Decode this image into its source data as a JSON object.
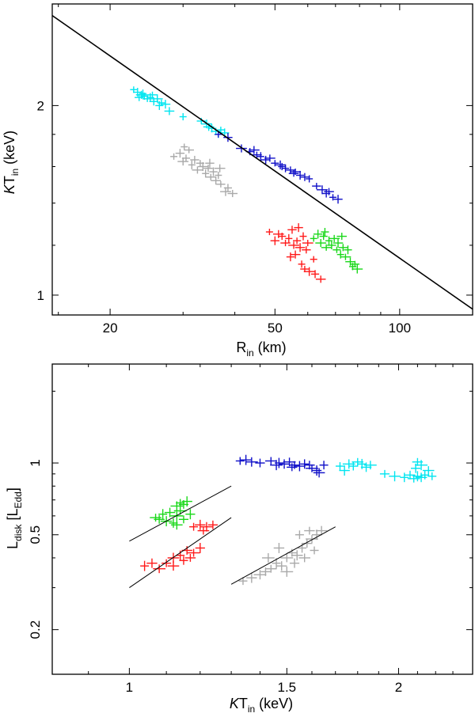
{
  "chart_data": [
    {
      "id": "top",
      "type": "scatter",
      "xscale": "log",
      "yscale": "log",
      "xlim": [
        14.5,
        150
      ],
      "ylim": [
        0.93,
        2.9
      ],
      "xlabel": {
        "main": "R",
        "sub": "in",
        "unit": " (km)"
      },
      "ylabel": {
        "italic": "K",
        "main": "T",
        "sub": "in",
        "unit": " (keV)"
      },
      "xticks": [
        {
          "value": 20,
          "label": "20"
        },
        {
          "value": 50,
          "label": "50"
        },
        {
          "value": 100,
          "label": "100"
        }
      ],
      "xminor": [
        15,
        30,
        40,
        60,
        70,
        80,
        90
      ],
      "yticks": [
        {
          "value": 1,
          "label": "1"
        },
        {
          "value": 2,
          "label": "2"
        }
      ],
      "yminor": [
        1.2,
        1.4,
        1.6,
        1.8
      ],
      "fit_lines": [
        {
          "x": [
            14.5,
            150
          ],
          "y": [
            2.78,
            0.95
          ]
        }
      ],
      "series": [
        {
          "name": "cyan",
          "color": "#00e5f0",
          "points": [
            [
              22.8,
              2.12
            ],
            [
              23.3,
              2.1
            ],
            [
              23.8,
              2.08
            ],
            [
              24.2,
              2.07
            ],
            [
              24.6,
              2.05
            ],
            [
              25.0,
              2.06
            ],
            [
              25.5,
              2.03
            ],
            [
              26.0,
              2.05
            ],
            [
              26.6,
              2.02
            ],
            [
              27.2,
              2.01
            ],
            [
              24.0,
              2.09
            ],
            [
              23.5,
              2.06
            ],
            [
              25.3,
              2.08
            ],
            [
              26.3,
              2.0
            ],
            [
              27.8,
              1.96
            ],
            [
              30.0,
              1.92
            ],
            [
              33.2,
              1.89
            ],
            [
              34.2,
              1.87
            ],
            [
              35.2,
              1.84
            ],
            [
              36.0,
              1.82
            ],
            [
              37.0,
              1.83
            ],
            [
              37.8,
              1.81
            ],
            [
              34.6,
              1.85
            ],
            [
              36.5,
              1.8
            ]
          ]
        },
        {
          "name": "blue",
          "color": "#1010c8",
          "points": [
            [
              36.5,
              1.8
            ],
            [
              38.5,
              1.78
            ],
            [
              41.5,
              1.71
            ],
            [
              43.5,
              1.69
            ],
            [
              45.2,
              1.67
            ],
            [
              46.2,
              1.66
            ],
            [
              47.5,
              1.64
            ],
            [
              48.6,
              1.65
            ],
            [
              50.0,
              1.62
            ],
            [
              51.5,
              1.61
            ],
            [
              53.0,
              1.59
            ],
            [
              54.5,
              1.58
            ],
            [
              56.0,
              1.57
            ],
            [
              57.5,
              1.55
            ],
            [
              59.0,
              1.54
            ],
            [
              60.5,
              1.53
            ],
            [
              63.0,
              1.49
            ],
            [
              65.0,
              1.47
            ],
            [
              66.5,
              1.45
            ],
            [
              67.5,
              1.46
            ],
            [
              69.0,
              1.43
            ],
            [
              71.0,
              1.42
            ],
            [
              44.5,
              1.7
            ],
            [
              52.0,
              1.6
            ],
            [
              55.5,
              1.56
            ]
          ]
        },
        {
          "name": "gray",
          "color": "#a9a9a9",
          "points": [
            [
              28.5,
              1.66
            ],
            [
              29.5,
              1.68
            ],
            [
              30.0,
              1.63
            ],
            [
              30.5,
              1.65
            ],
            [
              31.0,
              1.7
            ],
            [
              31.5,
              1.61
            ],
            [
              32.0,
              1.64
            ],
            [
              32.5,
              1.58
            ],
            [
              33.0,
              1.62
            ],
            [
              33.5,
              1.6
            ],
            [
              34.0,
              1.56
            ],
            [
              34.5,
              1.59
            ],
            [
              35.0,
              1.54
            ],
            [
              35.5,
              1.57
            ],
            [
              36.0,
              1.52
            ],
            [
              36.5,
              1.55
            ],
            [
              37.0,
              1.5
            ],
            [
              38.0,
              1.46
            ],
            [
              38.5,
              1.48
            ],
            [
              39.5,
              1.45
            ],
            [
              30.2,
              1.72
            ],
            [
              34.8,
              1.62
            ],
            [
              36.8,
              1.59
            ]
          ]
        },
        {
          "name": "red",
          "color": "#ff1a1a",
          "points": [
            [
              48.5,
              1.26
            ],
            [
              50.0,
              1.22
            ],
            [
              51.0,
              1.25
            ],
            [
              52.0,
              1.24
            ],
            [
              53.0,
              1.21
            ],
            [
              54.0,
              1.23
            ],
            [
              55.0,
              1.27
            ],
            [
              55.5,
              1.2
            ],
            [
              56.5,
              1.22
            ],
            [
              57.5,
              1.19
            ],
            [
              58.5,
              1.24
            ],
            [
              59.5,
              1.18
            ],
            [
              60.0,
              1.21
            ],
            [
              54.5,
              1.15
            ],
            [
              56.0,
              1.16
            ],
            [
              58.0,
              1.12
            ],
            [
              59.0,
              1.1
            ],
            [
              60.5,
              1.09
            ],
            [
              62.5,
              1.08
            ],
            [
              64.5,
              1.06
            ],
            [
              62.0,
              1.14
            ],
            [
              57.0,
              1.28
            ]
          ]
        },
        {
          "name": "green",
          "color": "#1ad81a",
          "points": [
            [
              62.0,
              1.23
            ],
            [
              63.5,
              1.25
            ],
            [
              64.5,
              1.21
            ],
            [
              65.5,
              1.24
            ],
            [
              66.5,
              1.19
            ],
            [
              67.5,
              1.22
            ],
            [
              68.5,
              1.2
            ],
            [
              69.5,
              1.23
            ],
            [
              70.5,
              1.18
            ],
            [
              71.0,
              1.21
            ],
            [
              72.0,
              1.16
            ],
            [
              73.0,
              1.19
            ],
            [
              74.0,
              1.15
            ],
            [
              75.0,
              1.18
            ],
            [
              76.0,
              1.13
            ],
            [
              77.0,
              1.11
            ],
            [
              78.0,
              1.12
            ],
            [
              79.0,
              1.1
            ],
            [
              66.0,
              1.26
            ],
            [
              72.5,
              1.24
            ]
          ]
        }
      ]
    },
    {
      "id": "bottom",
      "type": "scatter",
      "xscale": "log",
      "yscale": "log",
      "xlim": [
        0.82,
        2.42
      ],
      "ylim": [
        0.13,
        2.6
      ],
      "xlabel": {
        "italic": "K",
        "main": "T",
        "sub": "in",
        "unit": " (keV)"
      },
      "ylabel": {
        "main": "L",
        "sub": "disk",
        "unit": " [L",
        "sub2": "Edd",
        "close": "]"
      },
      "xticks": [
        {
          "value": 1,
          "label": "1"
        },
        {
          "value": 1.5,
          "label": "1.5"
        },
        {
          "value": 2,
          "label": "2"
        }
      ],
      "xminor": [
        0.9,
        1.1,
        1.2,
        1.3,
        1.4,
        1.6,
        1.7,
        1.8,
        1.9,
        2.1,
        2.2,
        2.3
      ],
      "yticks": [
        {
          "value": 0.2,
          "label": "0.2"
        },
        {
          "value": 0.5,
          "label": "0.5"
        },
        {
          "value": 1,
          "label": "1"
        }
      ],
      "yminor": [
        0.3,
        0.4,
        0.6,
        0.7,
        0.8,
        0.9,
        2
      ],
      "fit_lines": [
        {
          "x": [
            1.0,
            1.3
          ],
          "y": [
            0.47,
            0.8
          ]
        },
        {
          "x": [
            1.0,
            1.3
          ],
          "y": [
            0.3,
            0.59
          ]
        },
        {
          "x": [
            1.3,
            1.7
          ],
          "y": [
            0.31,
            0.54
          ]
        }
      ],
      "series": [
        {
          "name": "blue",
          "color": "#1010c8",
          "points": [
            [
              1.33,
              1.02
            ],
            [
              1.35,
              1.03
            ],
            [
              1.37,
              1.01
            ],
            [
              1.4,
              1.0
            ],
            [
              1.44,
              1.02
            ],
            [
              1.47,
              1.0
            ],
            [
              1.49,
              0.99
            ],
            [
              1.51,
              1.01
            ],
            [
              1.53,
              0.98
            ],
            [
              1.55,
              0.97
            ],
            [
              1.57,
              0.99
            ],
            [
              1.59,
              0.98
            ],
            [
              1.6,
              0.95
            ],
            [
              1.62,
              0.93
            ],
            [
              1.63,
              0.91
            ],
            [
              1.65,
              0.98
            ],
            [
              1.52,
              0.96
            ],
            [
              1.46,
              0.98
            ]
          ]
        },
        {
          "name": "cyan",
          "color": "#00e5f0",
          "points": [
            [
              1.72,
              0.97
            ],
            [
              1.74,
              0.93
            ],
            [
              1.76,
              0.99
            ],
            [
              1.78,
              0.97
            ],
            [
              1.8,
              1.01
            ],
            [
              1.82,
              0.99
            ],
            [
              1.84,
              0.96
            ],
            [
              1.86,
              0.98
            ],
            [
              1.93,
              0.9
            ],
            [
              1.98,
              0.88
            ],
            [
              2.03,
              0.87
            ],
            [
              2.06,
              0.89
            ],
            [
              2.08,
              0.86
            ],
            [
              2.1,
              0.88
            ],
            [
              2.12,
              0.87
            ],
            [
              2.14,
              0.89
            ],
            [
              2.1,
              1.01
            ],
            [
              2.12,
              0.98
            ],
            [
              2.09,
              0.95
            ],
            [
              2.16,
              0.93
            ],
            [
              2.18,
              0.88
            ]
          ]
        },
        {
          "name": "green",
          "color": "#1ad81a",
          "points": [
            [
              1.14,
              0.68
            ],
            [
              1.16,
              0.69
            ],
            [
              1.13,
              0.66
            ],
            [
              1.15,
              0.67
            ],
            [
              1.07,
              0.59
            ],
            [
              1.09,
              0.61
            ],
            [
              1.11,
              0.62
            ],
            [
              1.13,
              0.6
            ],
            [
              1.15,
              0.58
            ],
            [
              1.1,
              0.57
            ],
            [
              1.12,
              0.56
            ],
            [
              1.08,
              0.58
            ],
            [
              1.14,
              0.63
            ],
            [
              1.17,
              0.61
            ],
            [
              1.13,
              0.55
            ]
          ]
        },
        {
          "name": "red",
          "color": "#ff1a1a",
          "points": [
            [
              1.18,
              0.54
            ],
            [
              1.2,
              0.55
            ],
            [
              1.22,
              0.54
            ],
            [
              1.24,
              0.55
            ],
            [
              1.21,
              0.52
            ],
            [
              1.04,
              0.37
            ],
            [
              1.06,
              0.38
            ],
            [
              1.08,
              0.36
            ],
            [
              1.1,
              0.38
            ],
            [
              1.12,
              0.4
            ],
            [
              1.14,
              0.41
            ],
            [
              1.16,
              0.43
            ],
            [
              1.18,
              0.42
            ],
            [
              1.2,
              0.44
            ],
            [
              1.12,
              0.37
            ],
            [
              1.15,
              0.39
            ],
            [
              1.17,
              0.4
            ]
          ]
        },
        {
          "name": "gray",
          "color": "#a9a9a9",
          "points": [
            [
              1.34,
              0.32
            ],
            [
              1.37,
              0.33
            ],
            [
              1.4,
              0.34
            ],
            [
              1.42,
              0.35
            ],
            [
              1.44,
              0.36
            ],
            [
              1.46,
              0.38
            ],
            [
              1.48,
              0.37
            ],
            [
              1.5,
              0.4
            ],
            [
              1.52,
              0.42
            ],
            [
              1.54,
              0.41
            ],
            [
              1.56,
              0.44
            ],
            [
              1.58,
              0.46
            ],
            [
              1.6,
              0.48
            ],
            [
              1.62,
              0.5
            ],
            [
              1.64,
              0.52
            ],
            [
              1.55,
              0.5
            ],
            [
              1.59,
              0.52
            ],
            [
              1.5,
              0.35
            ],
            [
              1.53,
              0.38
            ],
            [
              1.57,
              0.4
            ],
            [
              1.61,
              0.43
            ],
            [
              1.47,
              0.44
            ],
            [
              1.43,
              0.4
            ]
          ]
        }
      ]
    }
  ]
}
